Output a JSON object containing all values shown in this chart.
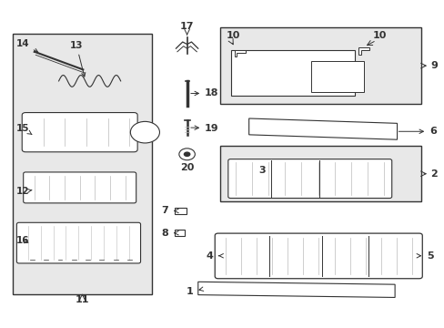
{
  "bg_color": "#ffffff",
  "diagram_bg": "#e8e8e8",
  "figsize": [
    4.89,
    3.6
  ],
  "dpi": 100
}
